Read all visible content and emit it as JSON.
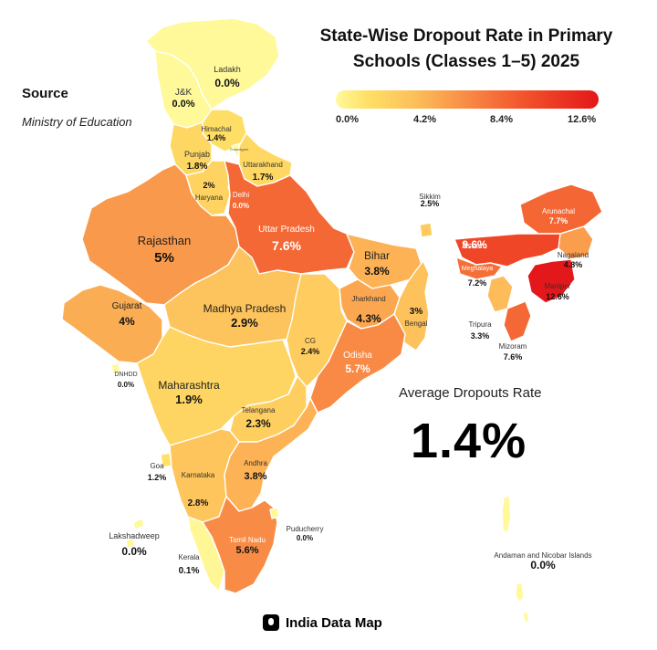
{
  "title_line1": "State-Wise Dropout Rate in Primary",
  "title_line2": "Schools (Classes 1–5) 2025",
  "source_heading": "Source",
  "source_value": "Ministry of Education",
  "legend": {
    "ticks": [
      "0.0%",
      "4.2%",
      "8.4%",
      "12.6%"
    ],
    "min": 0,
    "max": 12.6,
    "colors": [
      "#fff99a",
      "#fdbf5a",
      "#f2522b",
      "#e4171a"
    ]
  },
  "average_label": "Average Dropouts Rate",
  "average_value": "1.4%",
  "footer_brand": "India Data Map",
  "regions": [
    {
      "name": "Ladakh",
      "value": "0.0%"
    },
    {
      "name": "J&K",
      "value": "0.0%"
    },
    {
      "name": "Himachal",
      "value": "1.4%"
    },
    {
      "name": "Chandigarh",
      "value": ""
    },
    {
      "name": "Punjab",
      "value": "1.8%"
    },
    {
      "name": "Uttarakhand",
      "value": "1.7%"
    },
    {
      "name": "Haryana",
      "value": "2%"
    },
    {
      "name": "Delhi",
      "value": "0.0%"
    },
    {
      "name": "Rajasthan",
      "value": "5%"
    },
    {
      "name": "Uttar Pradesh",
      "value": "7.6%"
    },
    {
      "name": "Bihar",
      "value": "3.8%"
    },
    {
      "name": "Sikkim",
      "value": "2.5%"
    },
    {
      "name": "Arunachal",
      "value": "7.7%"
    },
    {
      "name": "Assam",
      "value": "9.6%"
    },
    {
      "name": "Nagaland",
      "value": "4.8%"
    },
    {
      "name": "Meghalaya",
      "value": "7.2%"
    },
    {
      "name": "Manipur",
      "value": "12.6%"
    },
    {
      "name": "Tripura",
      "value": "3.3%"
    },
    {
      "name": "Mizoram",
      "value": "7.6%"
    },
    {
      "name": "Gujarat",
      "value": "4%"
    },
    {
      "name": "Madhya Pradesh",
      "value": "2.9%"
    },
    {
      "name": "Jharkhand",
      "value": "4.3%"
    },
    {
      "name": "Bengal",
      "value": "3%"
    },
    {
      "name": "CG",
      "value": "2.4%"
    },
    {
      "name": "Odisha",
      "value": "5.7%"
    },
    {
      "name": "DNHDD",
      "value": "0.0%"
    },
    {
      "name": "Maharashtra",
      "value": "1.9%"
    },
    {
      "name": "Telangana",
      "value": "2.3%"
    },
    {
      "name": "Goa",
      "value": "1.2%"
    },
    {
      "name": "Karnataka",
      "value": "2.8%"
    },
    {
      "name": "Andhra",
      "value": "3.8%"
    },
    {
      "name": "Lakshadweep",
      "value": "0.0%"
    },
    {
      "name": "Kerala",
      "value": "0.1%"
    },
    {
      "name": "Tamil Nadu",
      "value": "5.6%"
    },
    {
      "name": "Puducherry",
      "value": "0.0%"
    },
    {
      "name": "Andaman and Nicobar Islands",
      "value": "0.0%"
    }
  ]
}
